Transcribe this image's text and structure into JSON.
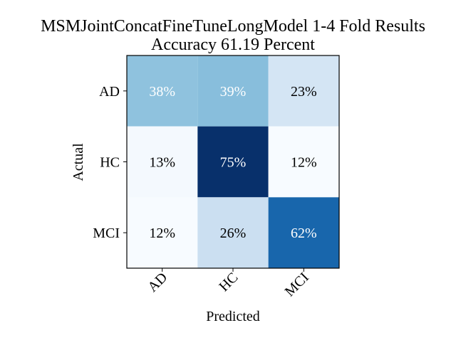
{
  "chart_data": {
    "type": "heatmap",
    "title": "MSMJointConcatFineTuneLongModel 1-4 Fold Results",
    "subtitle": "Accuracy 61.19 Percent",
    "xlabel": "Predicted",
    "ylabel": "Actual",
    "x_categories": [
      "AD",
      "HC",
      "MCI"
    ],
    "y_categories": [
      "AD",
      "HC",
      "MCI"
    ],
    "values": [
      [
        38,
        39,
        23
      ],
      [
        13,
        75,
        12
      ],
      [
        12,
        26,
        62
      ]
    ],
    "cell_labels": [
      [
        "38%",
        "39%",
        "23%"
      ],
      [
        "13%",
        "75%",
        "12%"
      ],
      [
        "12%",
        "26%",
        "62%"
      ]
    ],
    "colormap": "Blues",
    "grid": false,
    "colors": {
      "low": "#f7fbff",
      "high": "#08306b",
      "text_dark": "#000000",
      "text_light": "#ffffff"
    }
  }
}
